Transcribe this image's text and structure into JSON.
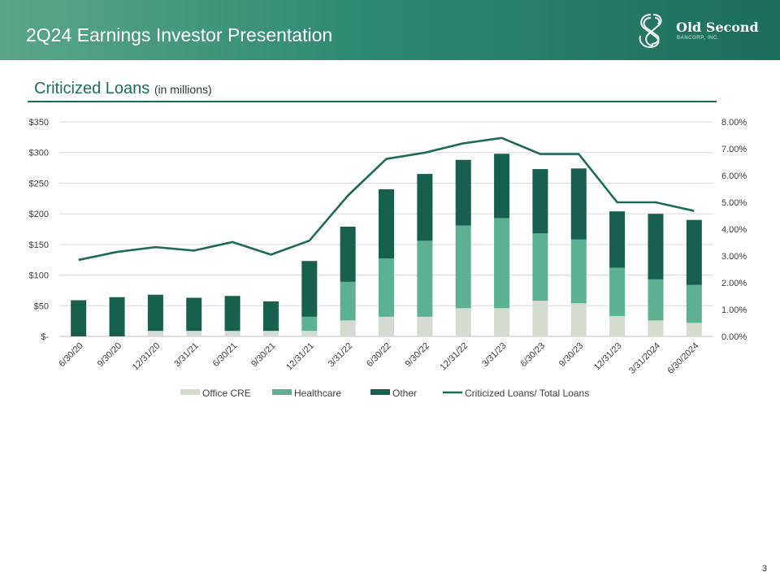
{
  "header": {
    "title": "2Q24 Earnings Investor Presentation"
  },
  "logo": {
    "name": "Old Second",
    "sub": "BANCORP, INC."
  },
  "section": {
    "title": "Criticized Loans",
    "subtitle": "(in millions)"
  },
  "page_number": "3",
  "colors": {
    "office_cre": "#d4dbcf",
    "healthcare": "#5cb193",
    "other": "#17604f",
    "line": "#1e6a59"
  },
  "chart_data": {
    "type": "bar",
    "stacked": true,
    "categories": [
      "6/30/20",
      "9/30/20",
      "12/31/20",
      "3/31/21",
      "6/30/21",
      "9/30/21",
      "12/31/21",
      "3/31/22",
      "6/30/22",
      "9/30/22",
      "12/31/22",
      "3/31/23",
      "6/30/23",
      "9/30/23",
      "12/31/23",
      "3/31/2024",
      "6/30/2024"
    ],
    "series": [
      {
        "name": "Office CRE",
        "values": [
          0,
          0,
          9,
          9,
          9,
          9,
          9,
          26,
          32,
          32,
          46,
          46,
          58,
          54,
          33,
          26,
          22
        ]
      },
      {
        "name": "Healthcare",
        "values": [
          0,
          0,
          0,
          0,
          0,
          0,
          23,
          63,
          95,
          124,
          135,
          147,
          110,
          104,
          79,
          67,
          62
        ]
      },
      {
        "name": "Other",
        "values": [
          59,
          64,
          59,
          54,
          57,
          48,
          91,
          90,
          113,
          109,
          107,
          105,
          105,
          116,
          92,
          107,
          106
        ]
      }
    ],
    "line_series": {
      "name": "Criticized Loans/ Total Loans",
      "axis": "right",
      "values": [
        2.85,
        3.15,
        3.33,
        3.2,
        3.52,
        3.05,
        3.57,
        5.25,
        6.62,
        6.85,
        7.2,
        7.4,
        6.8,
        6.8,
        5.0,
        5.0,
        4.68
      ]
    },
    "y_left": {
      "range": [
        0,
        350
      ],
      "ticks": [
        "$-",
        "$50",
        "$100",
        "$150",
        "$200",
        "$250",
        "$300",
        "$350"
      ]
    },
    "y_right": {
      "range": [
        0,
        8
      ],
      "ticks": [
        "0.00%",
        "1.00%",
        "2.00%",
        "3.00%",
        "4.00%",
        "5.00%",
        "6.00%",
        "7.00%",
        "8.00%"
      ]
    },
    "legend": [
      "Office CRE",
      "Healthcare",
      "Other",
      "Criticized Loans/ Total Loans"
    ],
    "legend_position": "bottom"
  }
}
